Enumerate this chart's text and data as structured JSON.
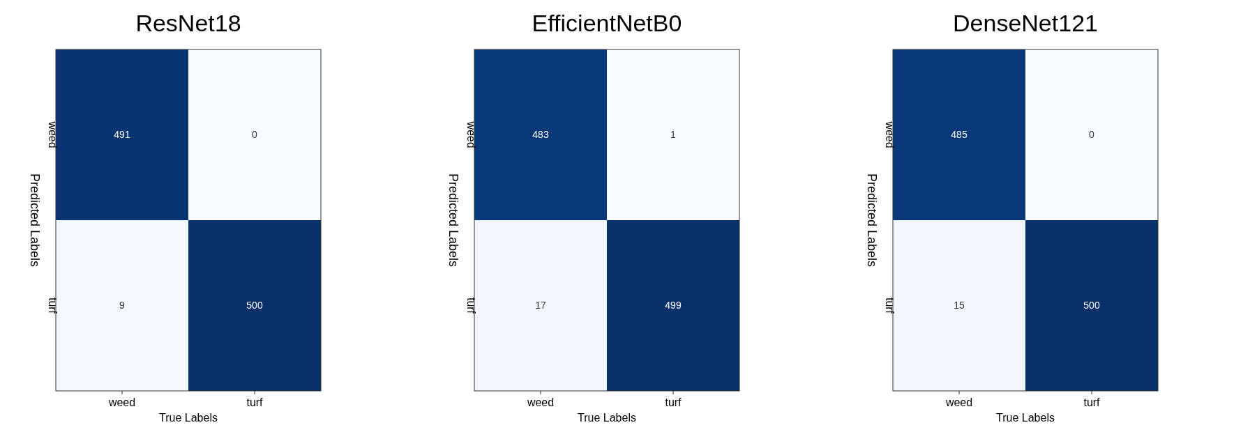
{
  "chart_data": [
    {
      "type": "heatmap",
      "title": "ResNet18",
      "xlabel": "True Labels",
      "ylabel": "Predicted Labels",
      "categories": [
        "weed",
        "turf"
      ],
      "y_categories": [
        "weed",
        "turf"
      ],
      "cells": [
        [
          491,
          0
        ],
        [
          9,
          500
        ]
      ],
      "data_labels": true
    },
    {
      "type": "heatmap",
      "title": "EfficientNetB0",
      "xlabel": "True Labels",
      "ylabel": "Predicted Labels",
      "categories": [
        "weed",
        "turf"
      ],
      "y_categories": [
        "weed",
        "turf"
      ],
      "cells": [
        [
          483,
          1
        ],
        [
          17,
          499
        ]
      ],
      "data_labels": true
    },
    {
      "type": "heatmap",
      "title": "DenseNet121",
      "xlabel": "True Labels",
      "ylabel": "Predicted Labels",
      "categories": [
        "weed",
        "turf"
      ],
      "y_categories": [
        "weed",
        "turf"
      ],
      "cells": [
        [
          485,
          0
        ],
        [
          15,
          500
        ]
      ],
      "data_labels": true
    }
  ]
}
